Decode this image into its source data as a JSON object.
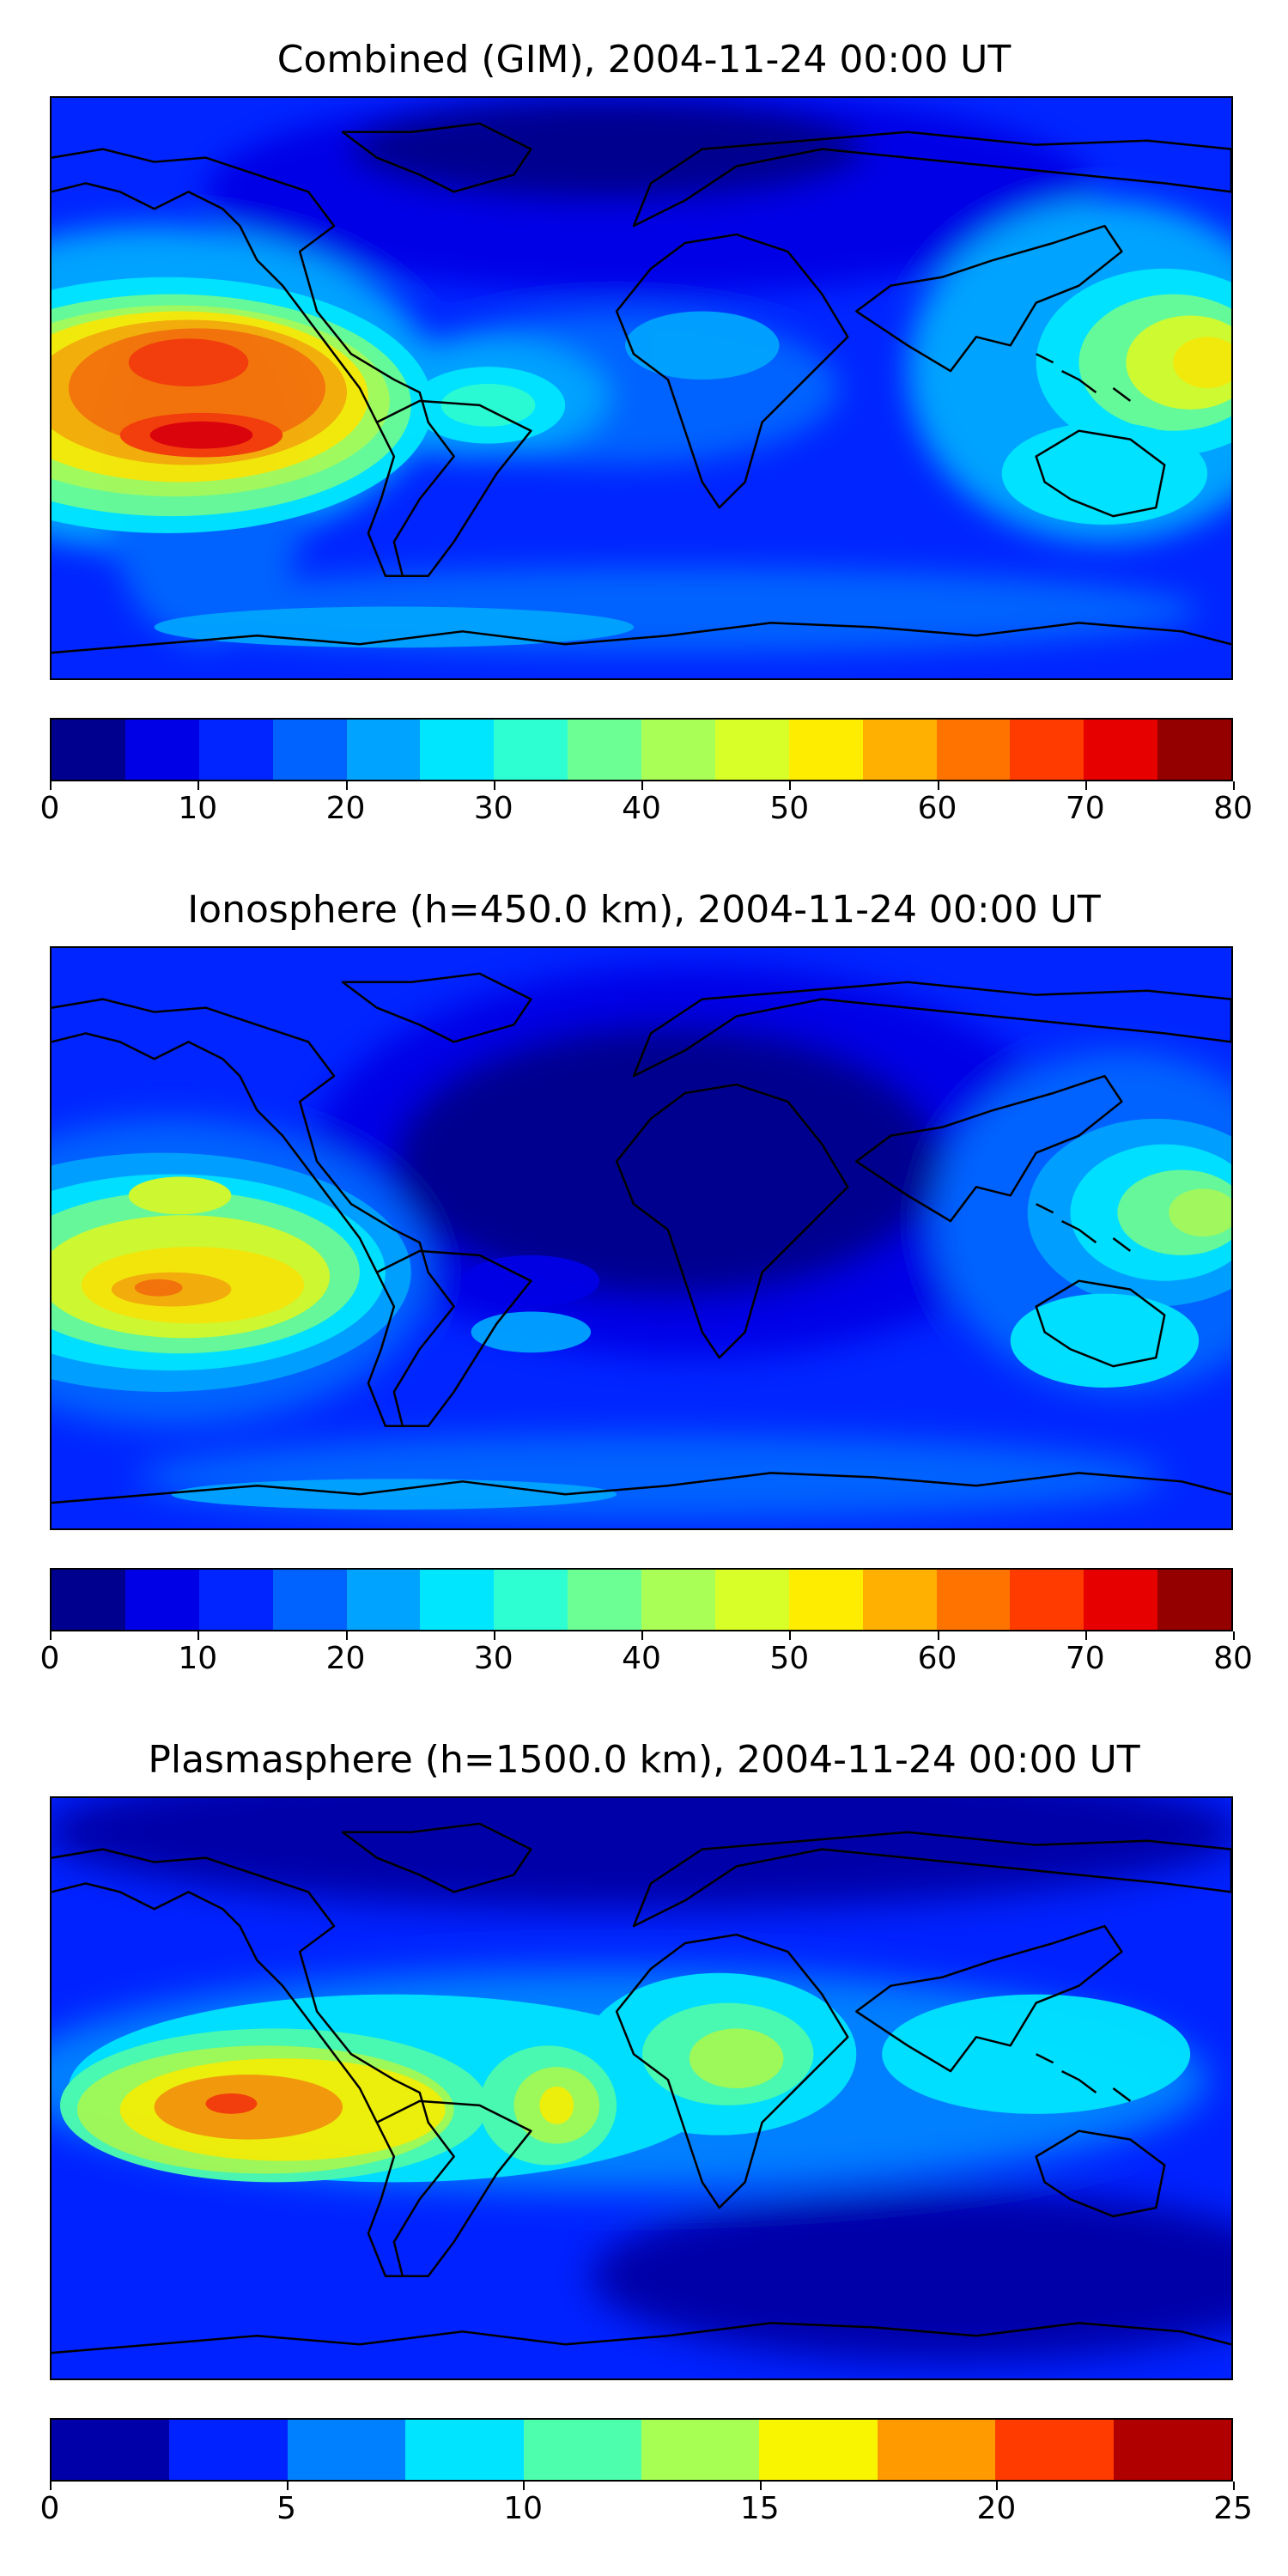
{
  "panels": [
    {
      "title": "Combined (GIM), 2004-11-24 00:00 UT",
      "colorbar": {
        "colors": [
          "#00008f",
          "#0000e6",
          "#0025ff",
          "#0063ff",
          "#00a3ff",
          "#00e6ff",
          "#2dffd2",
          "#6bff94",
          "#a9ff56",
          "#d8ff27",
          "#ffed00",
          "#ffb000",
          "#ff7400",
          "#ff3b00",
          "#e60000",
          "#940000"
        ],
        "ticks": [
          "0",
          "10",
          "20",
          "30",
          "40",
          "50",
          "60",
          "70",
          "80"
        ],
        "min": 0,
        "max": 80
      }
    },
    {
      "title": "Ionosphere  (h=450.0 km), 2004-11-24 00:00 UT",
      "colorbar": {
        "colors": [
          "#00008f",
          "#0000e6",
          "#0025ff",
          "#0063ff",
          "#00a3ff",
          "#00e6ff",
          "#2dffd2",
          "#6bff94",
          "#a9ff56",
          "#d8ff27",
          "#ffed00",
          "#ffb000",
          "#ff7400",
          "#ff3b00",
          "#e60000",
          "#940000"
        ],
        "ticks": [
          "0",
          "10",
          "20",
          "30",
          "40",
          "50",
          "60",
          "70",
          "80"
        ],
        "min": 0,
        "max": 80
      }
    },
    {
      "title": "Plasmasphere (h=1500.0 km), 2004-11-24 00:00 UT",
      "colorbar": {
        "colors": [
          "#0000a8",
          "#0022ff",
          "#0080ff",
          "#00e4ff",
          "#4dffad",
          "#a6ff52",
          "#f9f400",
          "#ff9a00",
          "#ff3b00",
          "#b00000"
        ],
        "ticks": [
          "0",
          "5",
          "10",
          "15",
          "20",
          "25"
        ],
        "min": 0,
        "max": 25
      }
    }
  ]
}
